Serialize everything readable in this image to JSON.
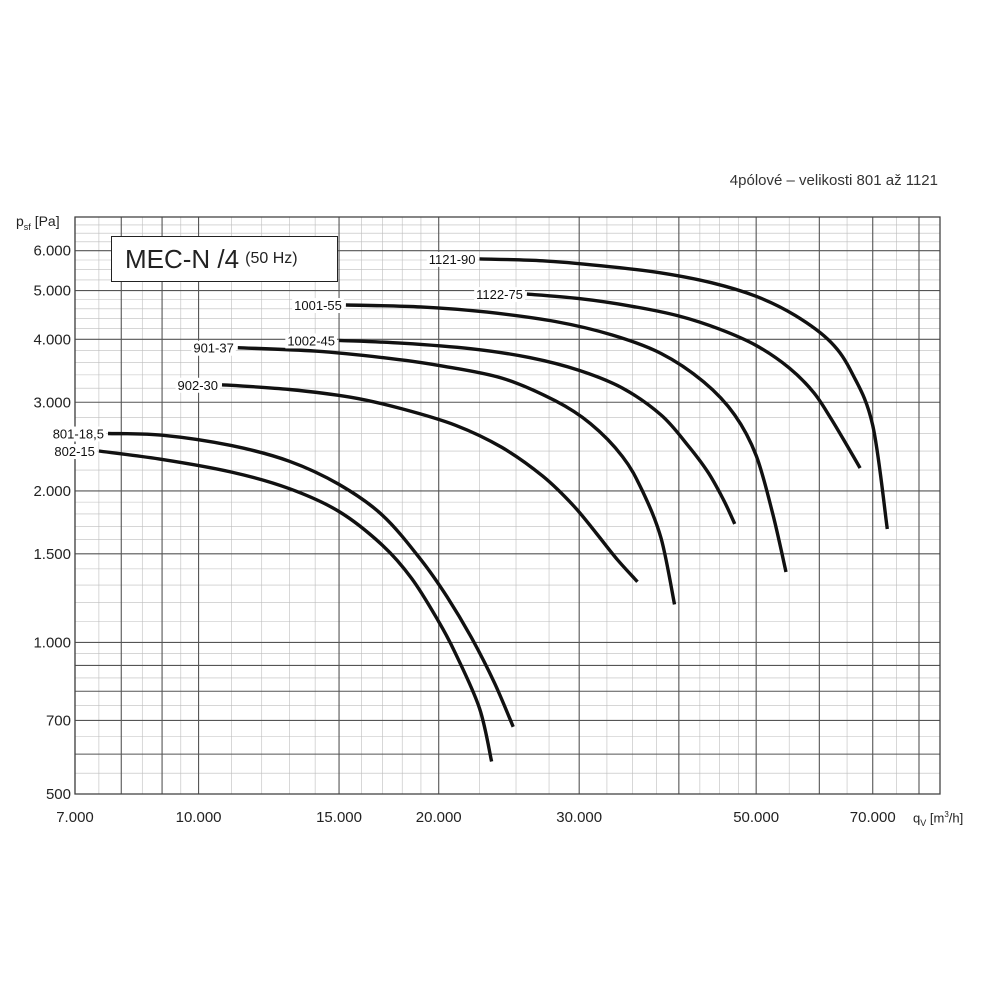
{
  "chart_data": {
    "type": "line",
    "title": "MEC-N /4",
    "title_suffix": "(50 Hz)",
    "subtitle": "4pólové – velikosti 801 až 1121",
    "ylabel": {
      "main": "p",
      "sub": "sf",
      "unit": " [Pa]"
    },
    "xlabel": {
      "main": "q",
      "sub": "V",
      "unit_pre": " [m",
      "unit_sup": "3",
      "unit_post": "/h]"
    },
    "x_scale": "log",
    "y_scale": "log",
    "xlim": [
      7000,
      85000
    ],
    "ylim": [
      500,
      7000
    ],
    "grid": true,
    "x_ticks": [
      {
        "value": 7000,
        "label": "7.000"
      },
      {
        "value": 10000,
        "label": "10.000"
      },
      {
        "value": 15000,
        "label": "15.000"
      },
      {
        "value": 20000,
        "label": "20.000"
      },
      {
        "value": 30000,
        "label": "30.000"
      },
      {
        "value": 50000,
        "label": "50.000"
      },
      {
        "value": 70000,
        "label": "70.000"
      }
    ],
    "y_ticks": [
      {
        "value": 500,
        "label": "500"
      },
      {
        "value": 700,
        "label": "700"
      },
      {
        "value": 1000,
        "label": "1.000"
      },
      {
        "value": 1500,
        "label": "1.500"
      },
      {
        "value": 2000,
        "label": "2.000"
      },
      {
        "value": 3000,
        "label": "3.000"
      },
      {
        "value": 4000,
        "label": "4.000"
      },
      {
        "value": 5000,
        "label": "5.000"
      },
      {
        "value": 6000,
        "label": "6.000"
      }
    ],
    "series": [
      {
        "name": "801-18,5",
        "x": [
          7700,
          9000,
          11000,
          13000,
          15000,
          17000,
          19000,
          20500,
          22000,
          23500,
          24800
        ],
        "y": [
          2600,
          2580,
          2460,
          2290,
          2060,
          1790,
          1460,
          1230,
          1020,
          830,
          680
        ]
      },
      {
        "name": "802-15",
        "x": [
          7500,
          9000,
          11000,
          13000,
          15000,
          17000,
          18500,
          20000,
          21000,
          22500,
          23300
        ],
        "y": [
          2400,
          2310,
          2180,
          2020,
          1820,
          1560,
          1340,
          1100,
          950,
          740,
          580
        ]
      },
      {
        "name": "902-30",
        "x": [
          10700,
          13000,
          15500,
          18000,
          21000,
          24000,
          27000,
          29500,
          31500,
          33500,
          35500
        ],
        "y": [
          3250,
          3180,
          3070,
          2910,
          2700,
          2440,
          2140,
          1870,
          1650,
          1460,
          1320
        ]
      },
      {
        "name": "901-37",
        "x": [
          11200,
          14000,
          17000,
          20000,
          24000,
          28000,
          31000,
          34000,
          36000,
          38000,
          39500
        ],
        "y": [
          3850,
          3790,
          3680,
          3550,
          3350,
          3020,
          2720,
          2340,
          2000,
          1610,
          1190
        ]
      },
      {
        "name": "1002-45",
        "x": [
          15000,
          18000,
          22000,
          26000,
          30000,
          34000,
          38000,
          41000,
          43500,
          45500,
          47000
        ],
        "y": [
          3980,
          3930,
          3830,
          3680,
          3470,
          3200,
          2830,
          2470,
          2180,
          1920,
          1720
        ]
      },
      {
        "name": "1001-55",
        "x": [
          15300,
          19000,
          23000,
          28000,
          33000,
          38000,
          43000,
          47000,
          50000,
          52500,
          54500
        ],
        "y": [
          4680,
          4640,
          4530,
          4340,
          4080,
          3750,
          3290,
          2830,
          2350,
          1790,
          1380
        ]
      },
      {
        "name": "1122-75",
        "x": [
          25800,
          30000,
          35000,
          40000,
          45000,
          50000,
          55000,
          59000,
          62000,
          65000,
          67500
        ],
        "y": [
          4920,
          4820,
          4650,
          4450,
          4190,
          3890,
          3510,
          3140,
          2790,
          2460,
          2220
        ]
      },
      {
        "name": "1121-90",
        "x": [
          22500,
          27000,
          32000,
          38000,
          44000,
          50000,
          56000,
          62000,
          66000,
          70000,
          73000
        ],
        "y": [
          5780,
          5730,
          5600,
          5420,
          5180,
          4870,
          4460,
          3950,
          3420,
          2700,
          1680
        ]
      }
    ]
  }
}
